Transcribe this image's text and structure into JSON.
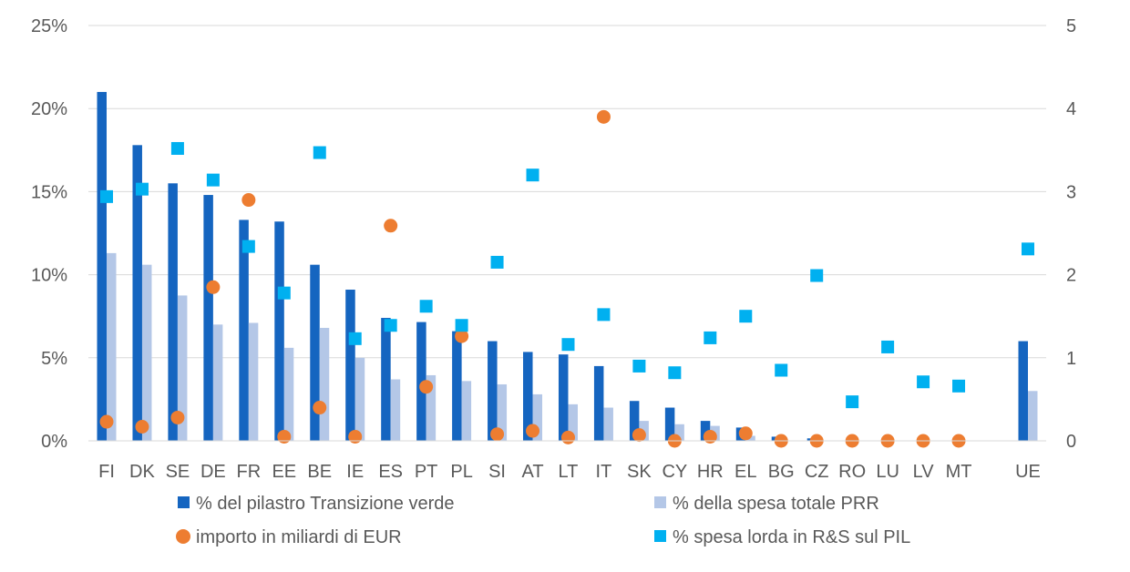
{
  "chart_data": {
    "type": "bar",
    "title": "",
    "categories": [
      "FI",
      "DK",
      "SE",
      "DE",
      "FR",
      "EE",
      "BE",
      "IE",
      "ES",
      "PT",
      "PL",
      "SI",
      "AT",
      "LT",
      "IT",
      "SK",
      "CY",
      "HR",
      "EL",
      "BG",
      "CZ",
      "RO",
      "LU",
      "LV",
      "MT",
      "UE"
    ],
    "y_left": {
      "ticks": [
        "0%",
        "5%",
        "10%",
        "15%",
        "20%",
        "25%"
      ],
      "ylim": [
        0,
        25
      ]
    },
    "y_right": {
      "ticks": [
        "0",
        "1",
        "2",
        "3",
        "4",
        "5"
      ],
      "ylim": [
        0,
        5
      ]
    },
    "series": [
      {
        "name": "% del pilastro Transizione verde",
        "kind": "bar",
        "axis": "left",
        "color": "#1565C0",
        "values": [
          21.0,
          17.8,
          15.5,
          14.8,
          13.3,
          13.2,
          10.6,
          9.1,
          7.4,
          7.15,
          6.6,
          6.0,
          5.35,
          5.2,
          4.5,
          2.4,
          2.0,
          1.2,
          0.8,
          0.25,
          0.15,
          null,
          null,
          null,
          null,
          6.0
        ]
      },
      {
        "name": "% della spesa totale PRR",
        "kind": "bar",
        "axis": "left",
        "color": "#B4C7E7",
        "values": [
          11.3,
          10.6,
          8.75,
          7.0,
          7.1,
          5.6,
          6.8,
          5.0,
          3.7,
          3.95,
          3.6,
          3.4,
          2.8,
          2.2,
          2.0,
          1.2,
          1.0,
          0.9,
          0.3,
          null,
          null,
          null,
          null,
          null,
          null,
          3.0
        ]
      },
      {
        "name": "importo in miliardi di EUR",
        "kind": "scatter",
        "marker": "circle",
        "axis": "right",
        "color": "#ED7D31",
        "values": [
          0.23,
          0.17,
          0.28,
          1.85,
          2.9,
          0.05,
          0.4,
          0.05,
          2.59,
          0.65,
          1.26,
          0.08,
          0.12,
          0.04,
          3.9,
          0.07,
          0.0,
          0.05,
          0.09,
          0.0,
          0.0,
          0.0,
          0.0,
          0.0,
          0.0,
          null
        ]
      },
      {
        "name": "% spesa lorda in R&S sul PIL",
        "kind": "scatter",
        "marker": "square",
        "axis": "right",
        "color": "#00B0F0",
        "values": [
          2.94,
          3.03,
          3.52,
          3.14,
          2.34,
          1.78,
          3.47,
          1.23,
          1.39,
          1.62,
          1.39,
          2.15,
          3.2,
          1.16,
          1.52,
          0.9,
          0.82,
          1.24,
          1.5,
          0.85,
          1.99,
          0.47,
          1.13,
          0.71,
          0.66,
          2.31
        ]
      }
    ],
    "legend": {
      "position": "bottom",
      "entries": [
        {
          "label": "% del pilastro Transizione verde",
          "marker": "square",
          "color": "#1565C0"
        },
        {
          "label": "% della spesa totale PRR",
          "marker": "square",
          "color": "#B4C7E7"
        },
        {
          "label": "importo in miliardi di EUR",
          "marker": "circle",
          "color": "#ED7D31"
        },
        {
          "label": "% spesa lorda in R&S sul PIL",
          "marker": "square",
          "color": "#00B0F0"
        }
      ]
    },
    "grid": true
  }
}
